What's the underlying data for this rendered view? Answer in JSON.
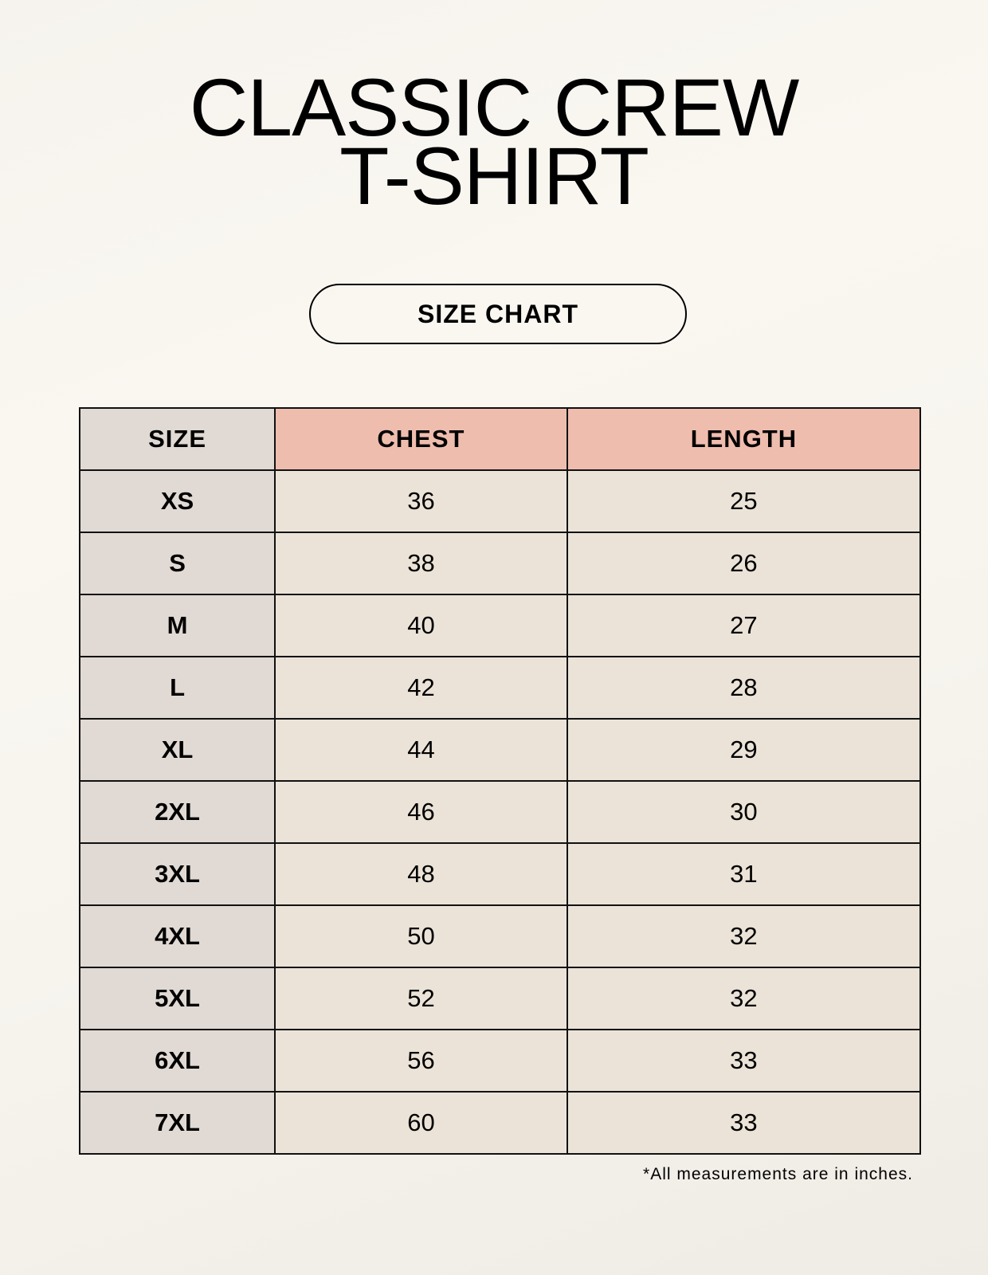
{
  "title": {
    "line1": "CLASSIC CREW",
    "line2": "T-SHIRT"
  },
  "badge": "SIZE CHART",
  "table": {
    "headers": [
      "SIZE",
      "CHEST",
      "LENGTH"
    ],
    "rows": [
      [
        "XS",
        "36",
        "25"
      ],
      [
        "S",
        "38",
        "26"
      ],
      [
        "M",
        "40",
        "27"
      ],
      [
        "L",
        "42",
        "28"
      ],
      [
        "XL",
        "44",
        "29"
      ],
      [
        "2XL",
        "46",
        "30"
      ],
      [
        "3XL",
        "48",
        "31"
      ],
      [
        "4XL",
        "50",
        "32"
      ],
      [
        "5XL",
        "52",
        "32"
      ],
      [
        "6XL",
        "56",
        "33"
      ],
      [
        "7XL",
        "60",
        "33"
      ]
    ]
  },
  "footnote": "*All measurements are in inches.",
  "colors": {
    "size_column": "#e1d9d3",
    "header_accent": "#efbdae",
    "value_cells": "#ebe3d8"
  }
}
